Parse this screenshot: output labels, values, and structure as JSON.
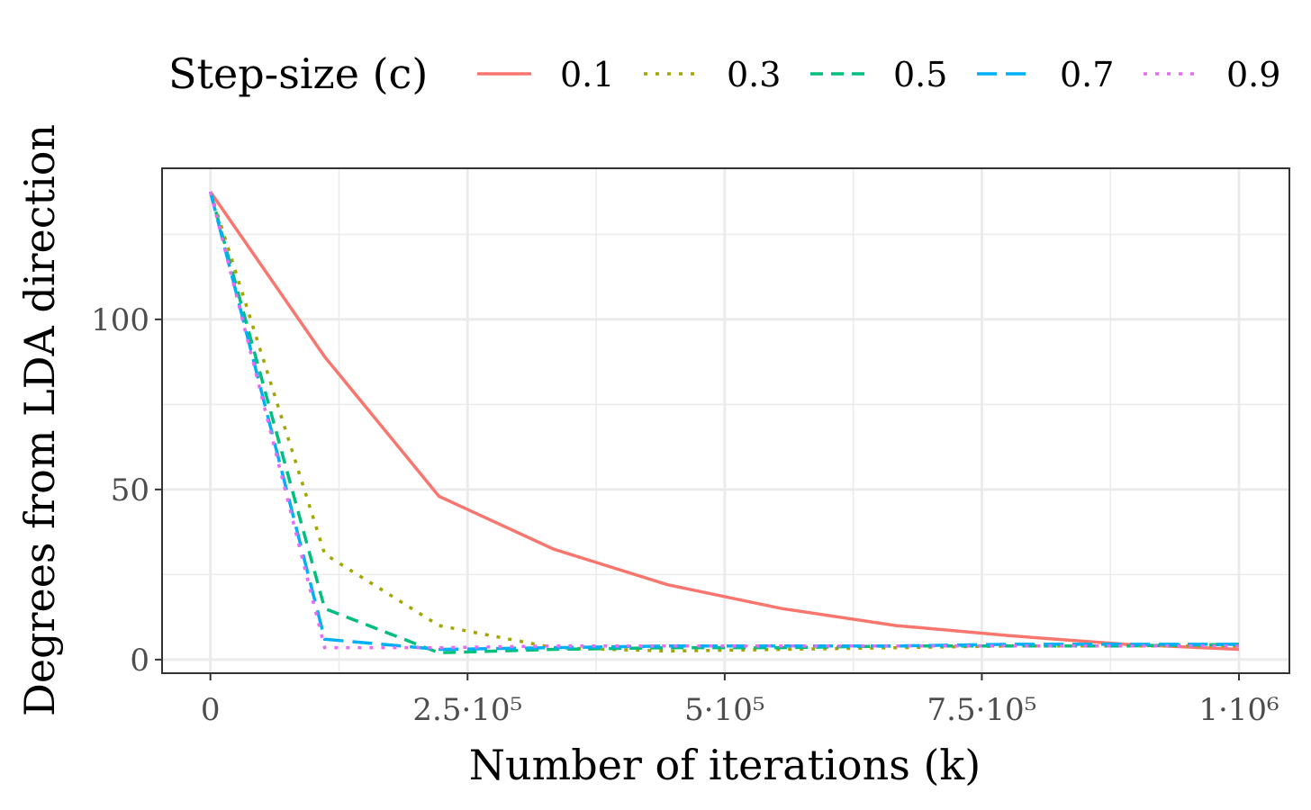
{
  "chart_data": {
    "type": "line",
    "xlabel": "Number of iterations (k)",
    "ylabel": "Degrees from LDA direction",
    "legend_title": "Step-size (c)",
    "legend": "top",
    "x": [
      0,
      111111,
      222222,
      333333,
      444444,
      555556,
      666667,
      777778,
      888889,
      1000000
    ],
    "series": [
      {
        "name": "0.1",
        "color": "#F8766D",
        "linetype": "solid",
        "values": [
          137.5,
          89,
          48,
          32.5,
          22,
          15,
          10,
          7,
          4.5,
          3
        ]
      },
      {
        "name": "0.3",
        "color": "#A3A500",
        "linetype": "dotted",
        "values": [
          137.5,
          31,
          10,
          3.5,
          2.5,
          3,
          3.5,
          4,
          4,
          4
        ]
      },
      {
        "name": "0.5",
        "color": "#00BF7D",
        "linetype": "dashed",
        "values": [
          137.5,
          15,
          2,
          3,
          3.5,
          3.5,
          4,
          4,
          4,
          4.5
        ]
      },
      {
        "name": "0.7",
        "color": "#00B0F6",
        "linetype": "longdash",
        "values": [
          137.5,
          6,
          3,
          3.5,
          4,
          4,
          4,
          4.5,
          4.5,
          4.5
        ]
      },
      {
        "name": "0.9",
        "color": "#E76BF3",
        "linetype": "dotted",
        "values": [
          137.5,
          3.5,
          3.5,
          4,
          4,
          4,
          4,
          4,
          4,
          4
        ]
      }
    ],
    "xlim": [
      -47000,
      1049000
    ],
    "ylim": [
      -4,
      144.4
    ],
    "xticks": [
      0,
      {
        "value": 250000,
        "label": "2.5·10⁵"
      },
      {
        "value": 500000,
        "label": "5·10⁵"
      },
      {
        "value": 750000,
        "label": "7.5·10⁵"
      },
      {
        "value": 1000000,
        "label": "1·10⁶"
      }
    ],
    "yticks": [
      0,
      50,
      100
    ],
    "x_minor_ticks": [
      125000,
      375000,
      625000,
      875000
    ],
    "y_minor_ticks": [
      25,
      75,
      125
    ],
    "grid": true
  }
}
